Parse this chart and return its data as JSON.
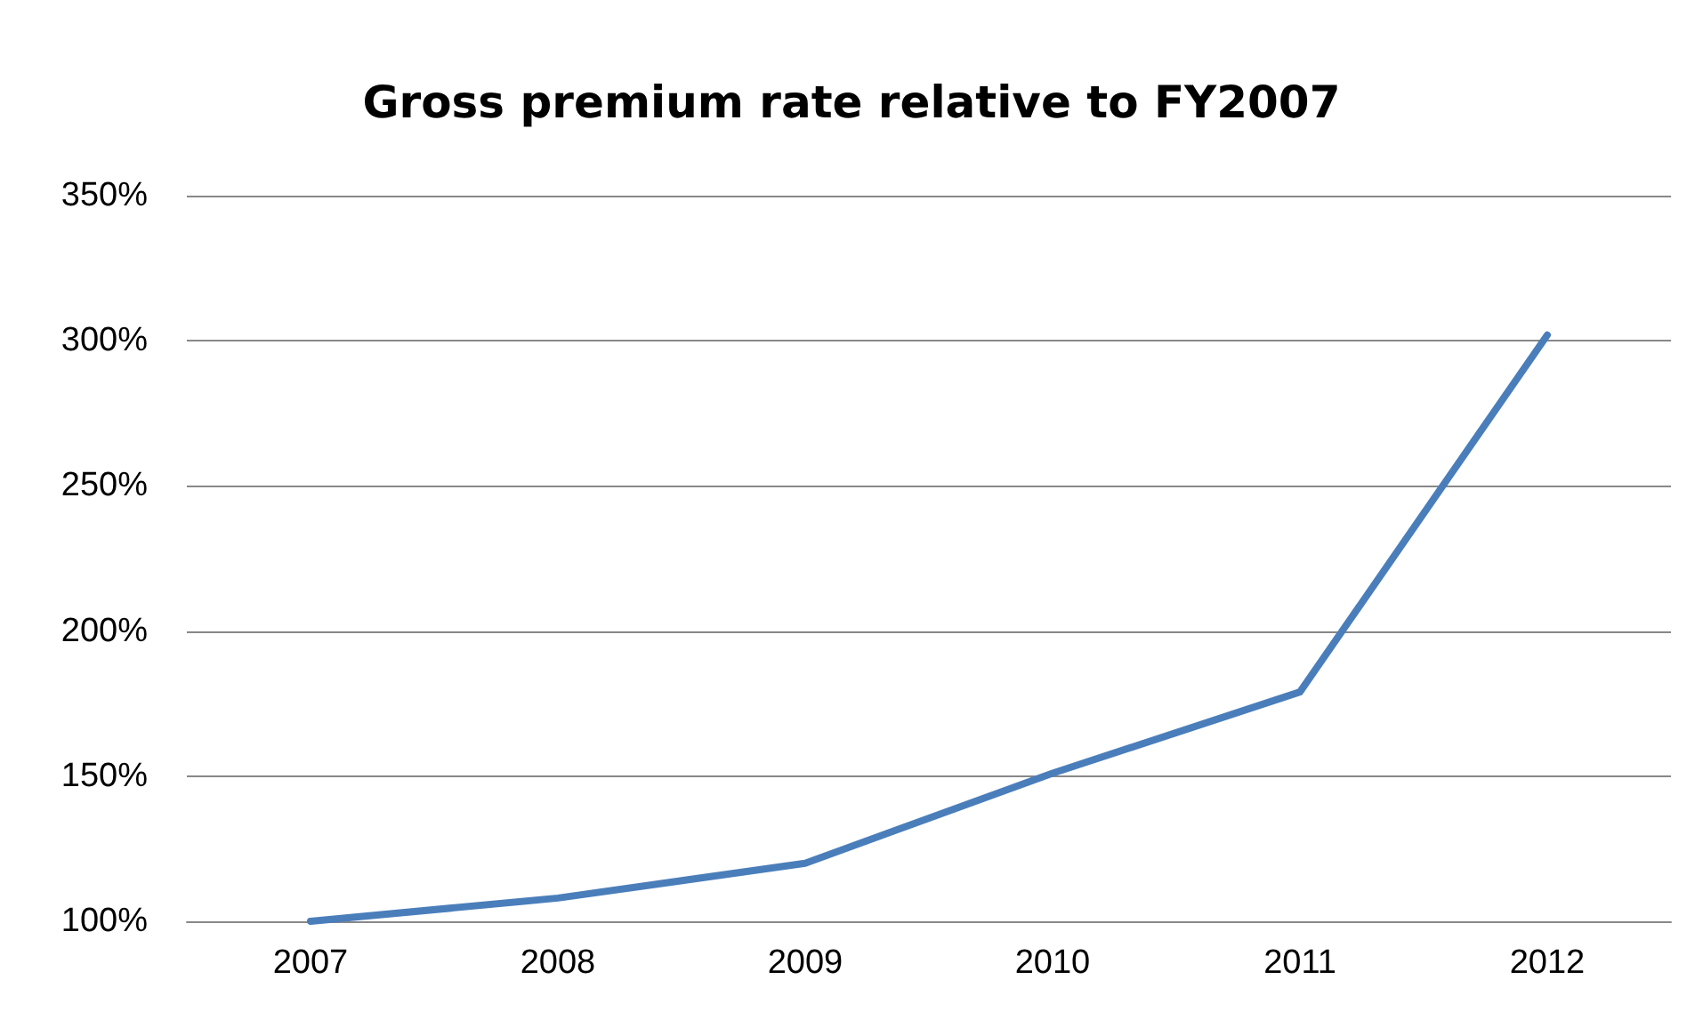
{
  "chart_data": {
    "type": "line",
    "title": "Gross premium rate relative to FY2007",
    "categories": [
      "2007",
      "2008",
      "2009",
      "2010",
      "2011",
      "2012"
    ],
    "series": [
      {
        "color": "#4a7ebb",
        "values": [
          100,
          108,
          120,
          151,
          179,
          302
        ]
      }
    ],
    "ylim": [
      100,
      350
    ],
    "yticks": [
      {
        "value": 100,
        "label": "100%"
      },
      {
        "value": 150,
        "label": "150%"
      },
      {
        "value": 200,
        "label": "200%"
      },
      {
        "value": 250,
        "label": "250%"
      },
      {
        "value": 300,
        "label": "300%"
      },
      {
        "value": 350,
        "label": "350%"
      }
    ],
    "grid": "y",
    "marker": "none",
    "line_style": "solid"
  }
}
